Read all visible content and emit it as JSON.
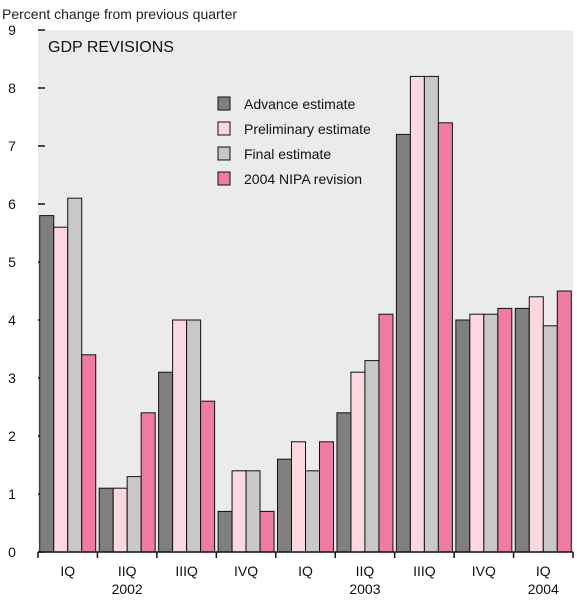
{
  "chart_data": {
    "type": "bar",
    "title": "GDP REVISIONS",
    "ylabel": "Percent change from previous quarter",
    "xlabel": "",
    "ylim": [
      0,
      9
    ],
    "yticks": [
      0,
      1,
      2,
      3,
      4,
      5,
      6,
      7,
      8,
      9
    ],
    "grid": false,
    "legend_position": "top-center",
    "categories": [
      "IQ",
      "IIQ",
      "IIIQ",
      "IVQ",
      "IQ",
      "IIQ",
      "IIIQ",
      "IVQ",
      "IQ"
    ],
    "year_labels": [
      {
        "label": "2002",
        "category_index": 1
      },
      {
        "label": "2003",
        "category_index": 5
      },
      {
        "label": "2004",
        "category_index": 8
      }
    ],
    "series": [
      {
        "name": "Advance estimate",
        "color": "#7f7f7f",
        "values": [
          5.8,
          1.1,
          3.1,
          0.7,
          1.6,
          2.4,
          7.2,
          4.0,
          4.2
        ]
      },
      {
        "name": "Preliminary estimate",
        "color": "#fbd7df",
        "values": [
          5.6,
          1.1,
          4.0,
          1.4,
          1.9,
          3.1,
          8.2,
          4.1,
          4.4
        ]
      },
      {
        "name": "Final estimate",
        "color": "#c8c8c8",
        "values": [
          6.1,
          1.3,
          4.0,
          1.4,
          1.4,
          3.3,
          8.2,
          4.1,
          3.9
        ]
      },
      {
        "name": "2004 NIPA revision",
        "color": "#ef7aa3",
        "values": [
          3.4,
          2.4,
          2.6,
          0.7,
          1.9,
          4.1,
          7.4,
          4.2,
          4.5
        ]
      }
    ],
    "plot_background": "#ebebeb"
  }
}
